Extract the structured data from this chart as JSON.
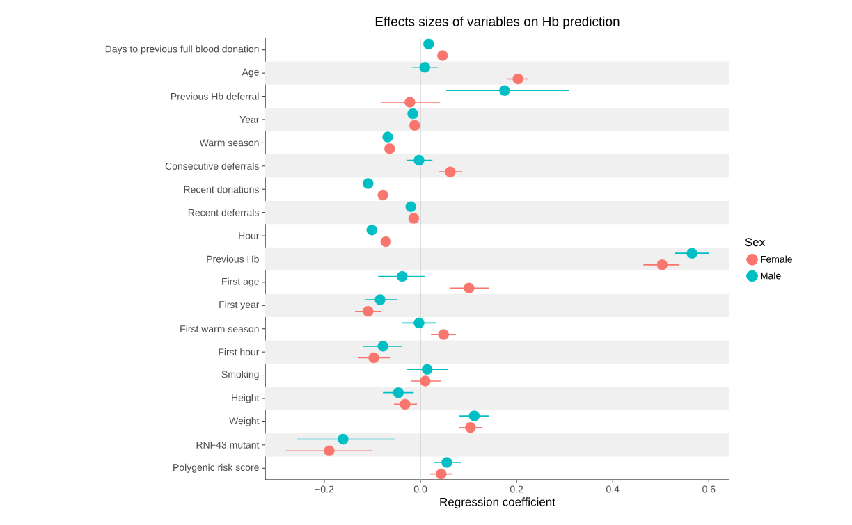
{
  "chart_data": {
    "type": "scatter",
    "title": "Effects sizes of variables on Hb prediction",
    "xlabel": "Regression coefficient",
    "legend_title": "Sex",
    "orientation": "horizontal",
    "marker": "circle",
    "legend": "right",
    "categories": [
      "Days to previous full blood donation",
      "Age",
      "Previous Hb deferral",
      "Year",
      "Warm season",
      "Consecutive deferrals",
      "Recent donations",
      "Recent deferrals",
      "Hour",
      "Previous Hb",
      "First age",
      "First year",
      "First warm season",
      "First hour",
      "Smoking",
      "Height",
      "Weight",
      "RNF43 mutant",
      "Polygenic risk score"
    ],
    "series": [
      {
        "name": "Female",
        "color": "#f8766d",
        "values": [
          0.046,
          0.203,
          -0.022,
          -0.012,
          -0.064,
          0.062,
          -0.078,
          -0.014,
          -0.072,
          0.503,
          0.101,
          -0.109,
          0.048,
          -0.097,
          0.01,
          -0.032,
          0.104,
          -0.19,
          0.043
        ],
        "errors": [
          null,
          [
            0.181,
            0.225
          ],
          [
            -0.081,
            0.041
          ],
          null,
          null,
          [
            0.038,
            0.087
          ],
          null,
          null,
          null,
          [
            0.464,
            0.539
          ],
          [
            0.061,
            0.143
          ],
          [
            -0.136,
            -0.081
          ],
          [
            0.022,
            0.074
          ],
          [
            -0.13,
            -0.062
          ],
          [
            -0.02,
            0.043
          ],
          [
            -0.055,
            -0.007
          ],
          [
            0.081,
            0.129
          ],
          [
            -0.28,
            -0.101
          ],
          [
            0.02,
            0.067
          ]
        ]
      },
      {
        "name": "Male",
        "color": "#00bfc4",
        "values": [
          0.017,
          0.009,
          0.175,
          -0.016,
          -0.068,
          -0.003,
          -0.109,
          -0.02,
          -0.101,
          0.565,
          -0.038,
          -0.084,
          -0.003,
          -0.078,
          0.014,
          -0.046,
          0.112,
          -0.161,
          0.055
        ],
        "errors": [
          null,
          [
            -0.018,
            0.036
          ],
          [
            0.054,
            0.309
          ],
          null,
          null,
          [
            -0.029,
            0.025
          ],
          null,
          null,
          null,
          [
            0.53,
            0.601
          ],
          [
            -0.088,
            0.01
          ],
          [
            -0.116,
            -0.049
          ],
          [
            -0.039,
            0.033
          ],
          [
            -0.12,
            -0.039
          ],
          [
            -0.029,
            0.058
          ],
          [
            -0.078,
            -0.014
          ],
          [
            0.08,
            0.143
          ],
          [
            -0.258,
            -0.054
          ],
          [
            0.028,
            0.084
          ]
        ]
      }
    ],
    "xlim": [
      -0.323,
      0.643
    ],
    "xticks": [
      {
        "value": -0.2,
        "label": "−0.2"
      },
      {
        "value": 0,
        "label": "0.0"
      },
      {
        "value": 0.2,
        "label": "0.2"
      },
      {
        "value": 0.4,
        "label": "0.4"
      },
      {
        "value": 0.6,
        "label": "0.6"
      }
    ],
    "ref_lines": [
      {
        "axis": "x",
        "value": 0,
        "color": "#cccccc"
      }
    ],
    "bands": [
      {
        "axis": "y",
        "from": "Age",
        "to": "Age",
        "color": "#f0f0f0"
      },
      {
        "axis": "y",
        "from": "Year",
        "to": "Year",
        "color": "#f0f0f0"
      },
      {
        "axis": "y",
        "from": "Consecutive deferrals",
        "to": "Consecutive deferrals",
        "color": "#f0f0f0"
      },
      {
        "axis": "y",
        "from": "Recent deferrals",
        "to": "Recent deferrals",
        "color": "#f0f0f0"
      },
      {
        "axis": "y",
        "from": "Previous Hb",
        "to": "Previous Hb",
        "color": "#f0f0f0"
      },
      {
        "axis": "y",
        "from": "First year",
        "to": "First year",
        "color": "#f0f0f0"
      },
      {
        "axis": "y",
        "from": "First hour",
        "to": "First hour",
        "color": "#f0f0f0"
      },
      {
        "axis": "y",
        "from": "Height",
        "to": "Height",
        "color": "#f0f0f0"
      },
      {
        "axis": "y",
        "from": "RNF43 mutant",
        "to": "RNF43 mutant",
        "color": "#f0f0f0"
      }
    ]
  }
}
